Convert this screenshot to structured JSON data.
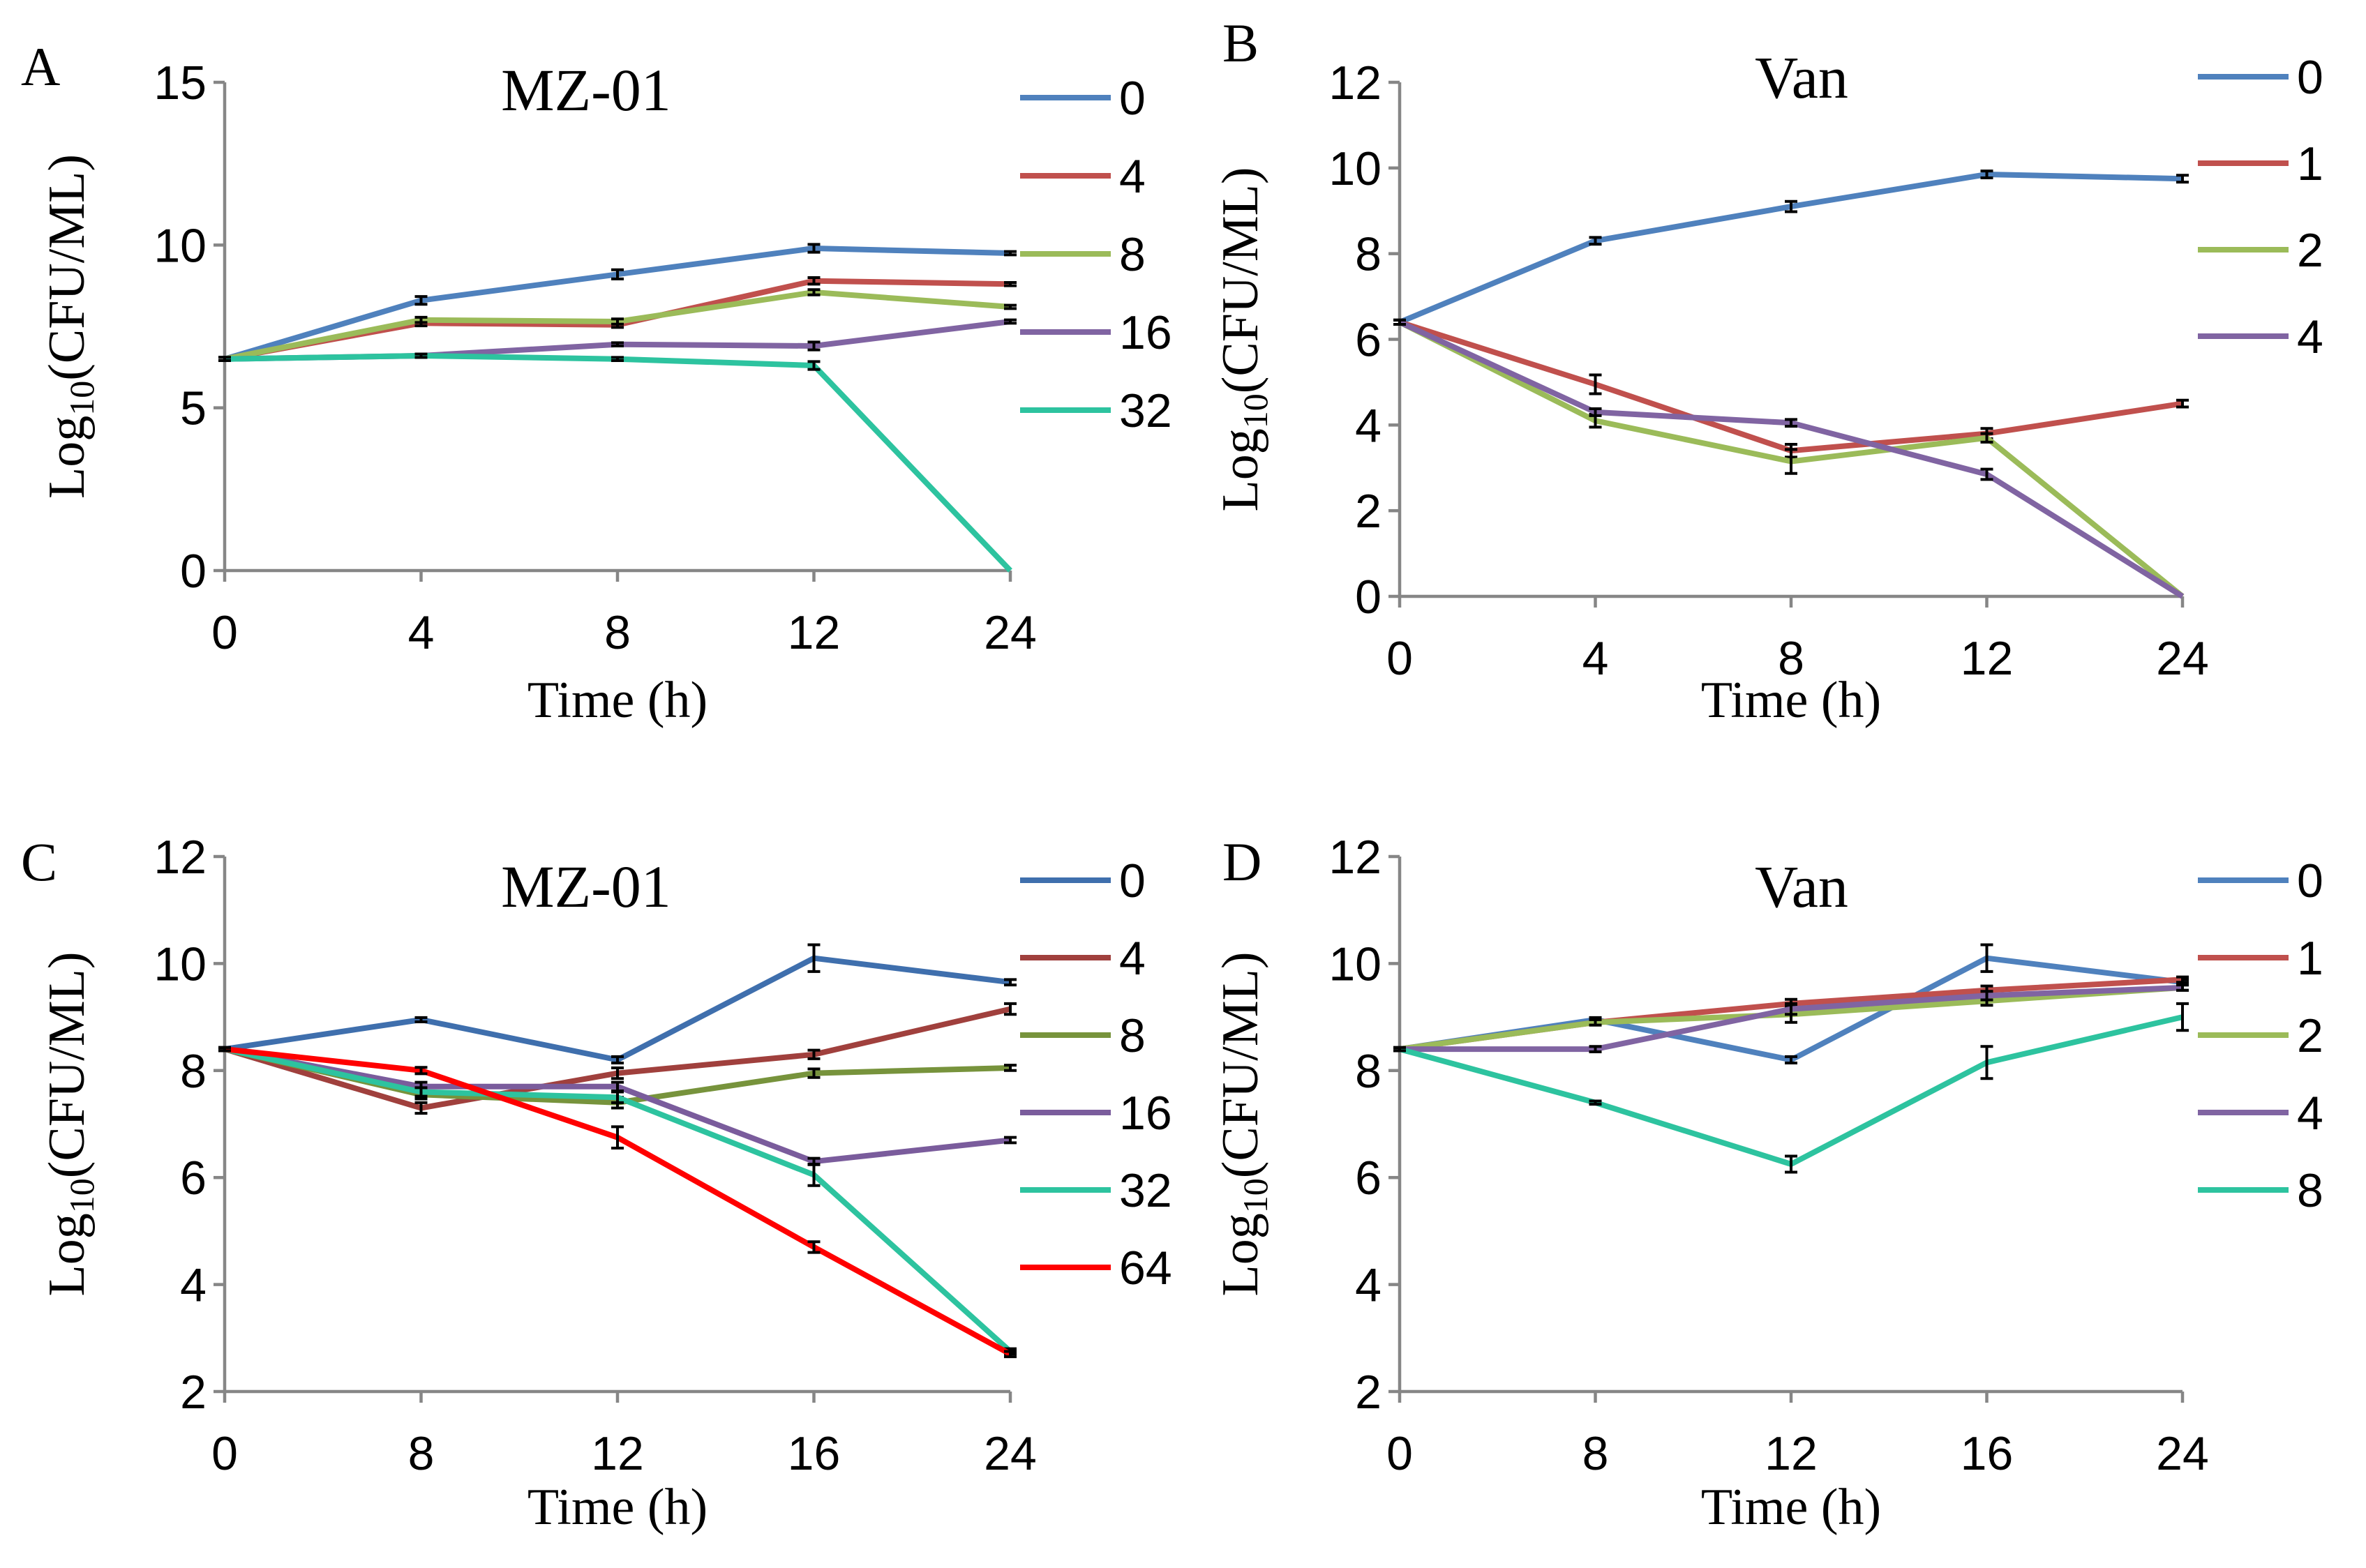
{
  "chart_data": [
    {
      "type": "line",
      "panel": "A",
      "title": "MZ-01",
      "xlabel": "Time (h)",
      "ylabel": {
        "base": "Log",
        "sub": "10",
        "rest": "(CFU/ML)"
      },
      "categories": [
        "0",
        "4",
        "8",
        "12",
        "24"
      ],
      "ylim": [
        0,
        15
      ],
      "yticks": [
        0,
        5,
        10,
        15
      ],
      "series": [
        {
          "name": "0",
          "color": "#4F81BD",
          "values": [
            6.5,
            8.3,
            9.1,
            9.9,
            9.75
          ],
          "errors": [
            0.05,
            0.12,
            0.14,
            0.12,
            0.05
          ]
        },
        {
          "name": "4",
          "color": "#C0504D",
          "values": [
            6.5,
            7.6,
            7.55,
            8.9,
            8.8
          ],
          "errors": [
            0.05,
            0.08,
            0.08,
            0.1,
            0.05
          ]
        },
        {
          "name": "8",
          "color": "#9BBB59",
          "values": [
            6.5,
            7.7,
            7.65,
            8.55,
            8.1
          ],
          "errors": [
            0.05,
            0.08,
            0.08,
            0.08,
            0.05
          ]
        },
        {
          "name": "16",
          "color": "#8064A2",
          "values": [
            6.5,
            6.6,
            6.95,
            6.9,
            7.65
          ],
          "errors": [
            0.05,
            0.05,
            0.05,
            0.12,
            0.05
          ]
        },
        {
          "name": "32",
          "color": "#2DC39F",
          "values": [
            6.5,
            6.6,
            6.5,
            6.3,
            0
          ],
          "errors": [
            0.05,
            0.05,
            0.05,
            0.12,
            0
          ]
        }
      ]
    },
    {
      "type": "line",
      "panel": "B",
      "title": "Van",
      "xlabel": "Time (h)",
      "ylabel": {
        "base": "Log",
        "sub": "10",
        "rest": "(CFU/ML)"
      },
      "categories": [
        "0",
        "4",
        "8",
        "12",
        "24"
      ],
      "ylim": [
        0,
        12
      ],
      "yticks": [
        0,
        2,
        4,
        6,
        8,
        10,
        12
      ],
      "series": [
        {
          "name": "0",
          "color": "#4F81BD",
          "values": [
            6.4,
            8.3,
            9.1,
            9.85,
            9.75
          ],
          "errors": [
            0.05,
            0.08,
            0.12,
            0.08,
            0.08
          ]
        },
        {
          "name": "1",
          "color": "#C0504D",
          "values": [
            6.4,
            4.95,
            3.4,
            3.8,
            4.5
          ],
          "errors": [
            0.05,
            0.22,
            0.15,
            0.12,
            0.08
          ]
        },
        {
          "name": "2",
          "color": "#9BBB59",
          "values": [
            6.4,
            4.1,
            3.15,
            3.7,
            0
          ],
          "errors": [
            0.05,
            0.15,
            0.28,
            0.1,
            0
          ]
        },
        {
          "name": "4",
          "color": "#8064A2",
          "values": [
            6.4,
            4.3,
            4.05,
            2.85,
            0
          ],
          "errors": [
            0.05,
            0.08,
            0.08,
            0.12,
            0
          ]
        }
      ]
    },
    {
      "type": "line",
      "panel": "C",
      "title": "MZ-01",
      "xlabel": "Time (h)",
      "ylabel": {
        "base": "Log",
        "sub": "10",
        "rest": "(CFU/ML)"
      },
      "categories": [
        "0",
        "8",
        "12",
        "16",
        "24"
      ],
      "ylim": [
        2,
        12
      ],
      "yticks": [
        2,
        4,
        6,
        8,
        10,
        12
      ],
      "series": [
        {
          "name": "0",
          "color": "#3F6FAD",
          "values": [
            8.4,
            8.95,
            8.2,
            10.1,
            9.65
          ],
          "errors": [
            0.03,
            0.04,
            0.06,
            0.25,
            0.05
          ]
        },
        {
          "name": "4",
          "color": "#A0403D",
          "values": [
            8.4,
            7.3,
            7.95,
            8.3,
            9.15
          ],
          "errors": [
            0.03,
            0.1,
            0.1,
            0.08,
            0.1
          ]
        },
        {
          "name": "8",
          "color": "#77933C",
          "values": [
            8.4,
            7.55,
            7.4,
            7.95,
            8.05
          ],
          "errors": [
            0.03,
            0.08,
            0.1,
            0.08,
            0.05
          ]
        },
        {
          "name": "16",
          "color": "#7A5C9C",
          "values": [
            8.4,
            7.7,
            7.7,
            6.3,
            6.7
          ],
          "errors": [
            0.03,
            0.08,
            0.08,
            0.06,
            0.05
          ]
        },
        {
          "name": "32",
          "color": "#2DC39F",
          "values": [
            8.4,
            7.6,
            7.5,
            6.05,
            2.75
          ],
          "errors": [
            0.03,
            0.08,
            0.1,
            0.2,
            0.05
          ]
        },
        {
          "name": "64",
          "color": "#FF0000",
          "values": [
            8.4,
            8.0,
            6.75,
            4.7,
            2.7
          ],
          "errors": [
            0.03,
            0.06,
            0.2,
            0.1,
            0.05
          ]
        }
      ]
    },
    {
      "type": "line",
      "panel": "D",
      "title": "Van",
      "xlabel": "Time (h)",
      "ylabel": {
        "base": "Log",
        "sub": "10",
        "rest": "(CFU/ML)"
      },
      "categories": [
        "0",
        "8",
        "12",
        "16",
        "24"
      ],
      "ylim": [
        2,
        12
      ],
      "yticks": [
        2,
        4,
        6,
        8,
        10,
        12
      ],
      "series": [
        {
          "name": "0",
          "color": "#4F81BD",
          "values": [
            8.4,
            8.95,
            8.2,
            10.1,
            9.65
          ],
          "errors": [
            0.03,
            0.04,
            0.06,
            0.25,
            0.05
          ]
        },
        {
          "name": "1",
          "color": "#C0504D",
          "values": [
            8.4,
            8.9,
            9.25,
            9.5,
            9.7
          ],
          "errors": [
            0.03,
            0.05,
            0.08,
            0.08,
            0.05
          ]
        },
        {
          "name": "2",
          "color": "#9BBB59",
          "values": [
            8.4,
            8.9,
            9.05,
            9.3,
            9.55
          ],
          "errors": [
            0.03,
            0.05,
            0.15,
            0.08,
            0.05
          ]
        },
        {
          "name": "4",
          "color": "#8064A2",
          "values": [
            8.4,
            8.4,
            9.15,
            9.4,
            9.55
          ],
          "errors": [
            0.03,
            0.05,
            0.1,
            0.08,
            0.05
          ]
        },
        {
          "name": "8",
          "color": "#2DC39F",
          "values": [
            8.4,
            7.4,
            6.25,
            8.15,
            9.0
          ],
          "errors": [
            0.03,
            0.03,
            0.15,
            0.3,
            0.25
          ]
        }
      ]
    }
  ]
}
